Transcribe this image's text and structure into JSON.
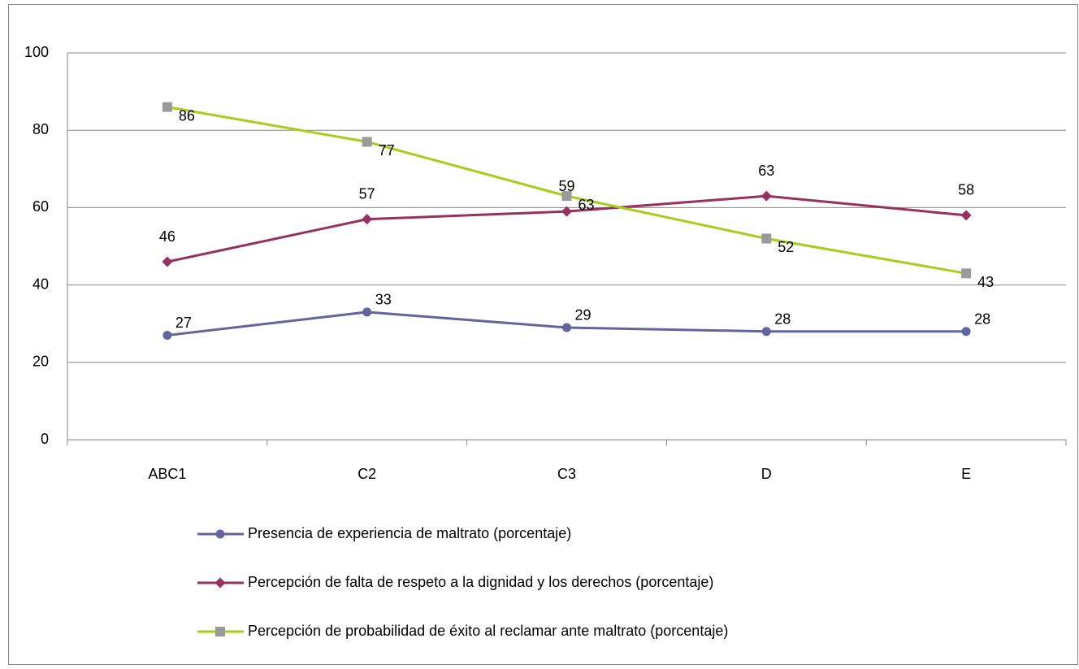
{
  "chart_data": {
    "type": "line",
    "categories": [
      "ABC1",
      "C2",
      "C3",
      "D",
      "E"
    ],
    "series": [
      {
        "name": "Presencia de experiencia de maltrato (porcentaje)",
        "color": "#62649f",
        "marker": "circle",
        "values": [
          27,
          33,
          29,
          28,
          28
        ]
      },
      {
        "name": "Percepción de falta de respeto a la dignidad y los derechos (porcentaje)",
        "color": "#98305f",
        "marker": "diamond",
        "values": [
          46,
          57,
          59,
          63,
          58
        ]
      },
      {
        "name": "Percepción de  probabilidad de éxito al reclamar ante maltrato (porcentaje)",
        "color": "#a5cd19",
        "marker": "square",
        "marker_color": "#9a9a9a",
        "values": [
          86,
          77,
          63,
          52,
          43
        ]
      }
    ],
    "ylim": [
      0,
      100
    ],
    "yticks": [
      0,
      20,
      40,
      60,
      80,
      100
    ],
    "grid": true,
    "legend": "bottom"
  }
}
